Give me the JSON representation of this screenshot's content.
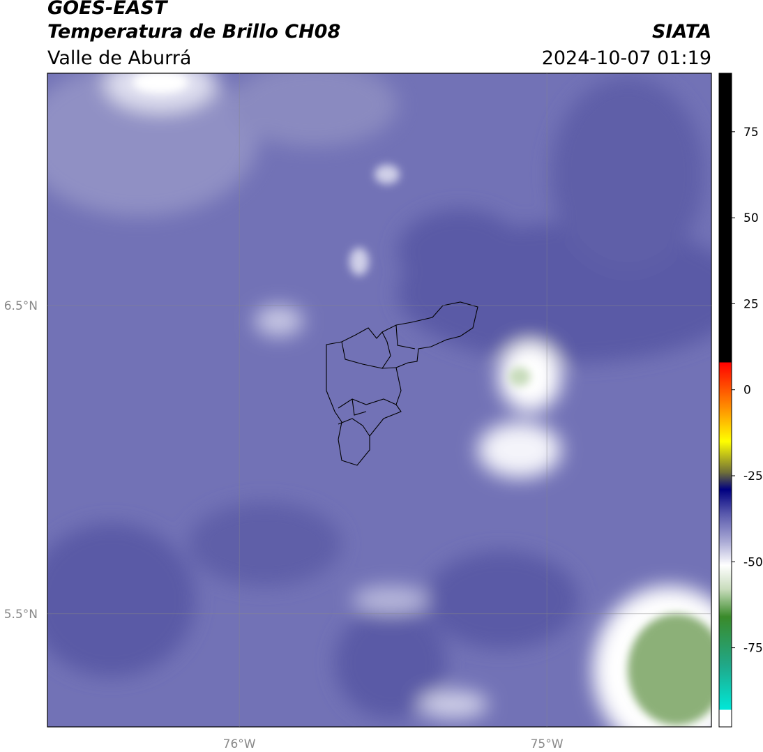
{
  "header": {
    "title": "GOES-EAST",
    "subtitle": "Temperatura de Brillo CH08",
    "source": "SIATA",
    "region": "Valle de Aburrá",
    "datetime": "2024-10-07 01:19"
  },
  "map": {
    "xlim": [
      -76.624,
      -74.465
    ],
    "ylim": [
      5.133,
      7.253
    ],
    "xticks": [
      {
        "value": -76,
        "label": "76°W"
      },
      {
        "value": -75,
        "label": "75°W"
      }
    ],
    "yticks": [
      {
        "value": 6.5,
        "label": "6.5°N"
      },
      {
        "value": 5.5,
        "label": "5.5°N"
      }
    ],
    "grid": true
  },
  "colorbar": {
    "clim": [
      -98,
      92
    ],
    "ticks": [
      75,
      50,
      25,
      0,
      -25,
      -50,
      -75
    ],
    "colormap": [
      {
        "value": -98,
        "color": "#ffffff"
      },
      {
        "value": -93,
        "color": "#ffffff"
      },
      {
        "value": -93,
        "color": "#00e8d8"
      },
      {
        "value": -80,
        "color": "#20a888"
      },
      {
        "value": -66,
        "color": "#3a8a2a"
      },
      {
        "value": -58,
        "color": "#c8dcbc"
      },
      {
        "value": -51,
        "color": "#ffffff"
      },
      {
        "value": -44,
        "color": "#a8a8d4"
      },
      {
        "value": -36,
        "color": "#5858ac"
      },
      {
        "value": -29,
        "color": "#000080"
      },
      {
        "value": -24,
        "color": "#707038"
      },
      {
        "value": -15,
        "color": "#ffff00"
      },
      {
        "value": -5,
        "color": "#ff8c00"
      },
      {
        "value": 8,
        "color": "#ff0000"
      },
      {
        "value": 8,
        "color": "#000000"
      },
      {
        "value": 92,
        "color": "#000000"
      }
    ]
  }
}
